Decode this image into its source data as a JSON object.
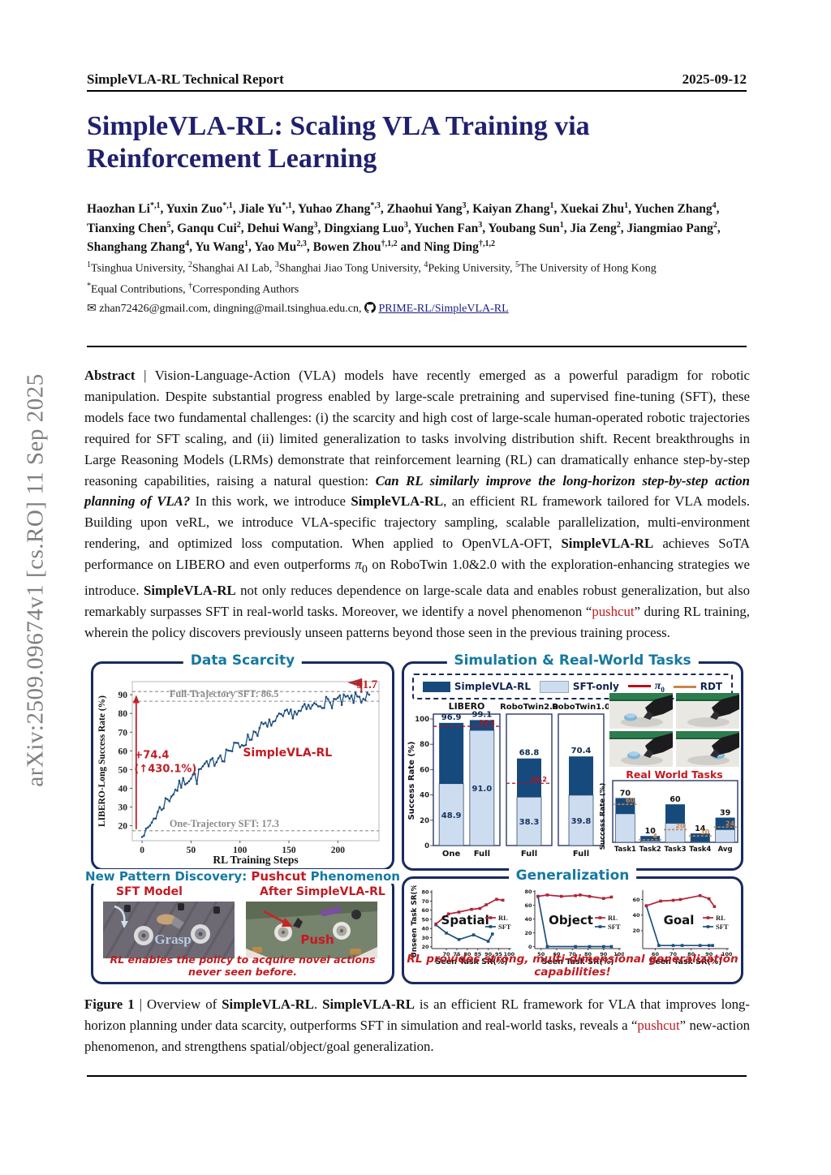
{
  "page": {
    "header_left": "SimpleVLA-RL Technical Report",
    "header_right": "2025-09-12",
    "arxiv_sidebar": "arXiv:2509.09674v1  [cs.RO]  11 Sep 2025",
    "title": "SimpleVLA-RL: Scaling VLA Training via Reinforcement Learning"
  },
  "icons": {
    "envelope": "✉",
    "github": "github-logo"
  },
  "authors": {
    "list": [
      {
        "name": "Haozhan Li",
        "sup": "*,1"
      },
      {
        "name": "Yuxin Zuo",
        "sup": "*,1"
      },
      {
        "name": "Jiale Yu",
        "sup": "*,1"
      },
      {
        "name": "Yuhao Zhang",
        "sup": "*,3"
      },
      {
        "name": "Zhaohui Yang",
        "sup": "3"
      },
      {
        "name": "Kaiyan Zhang",
        "sup": "1"
      },
      {
        "name": "Xuekai Zhu",
        "sup": "1"
      },
      {
        "name": "Yuchen Zhang",
        "sup": "4"
      },
      {
        "name": "Tianxing Chen",
        "sup": "5"
      },
      {
        "name": "Ganqu Cui",
        "sup": "2"
      },
      {
        "name": "Dehui Wang",
        "sup": "3"
      },
      {
        "name": "Dingxiang Luo",
        "sup": "3"
      },
      {
        "name": "Yuchen Fan",
        "sup": "3"
      },
      {
        "name": "Youbang Sun",
        "sup": "1"
      },
      {
        "name": "Jia Zeng",
        "sup": "2"
      },
      {
        "name": "Jiangmiao Pang",
        "sup": "2"
      },
      {
        "name": "Shanghang Zhang",
        "sup": "4"
      },
      {
        "name": "Yu Wang",
        "sup": "1"
      },
      {
        "name": "Yao Mu",
        "sup": "2,3"
      },
      {
        "name": "Bowen Zhou",
        "sup": "†,1,2"
      },
      {
        "name": "Ning Ding",
        "sup": "†,1,2"
      }
    ],
    "conjunction": "and",
    "affiliations": [
      {
        "sup": "1",
        "name": "Tsinghua University"
      },
      {
        "sup": "2",
        "name": "Shanghai AI Lab"
      },
      {
        "sup": "3",
        "name": "Shanghai Jiao Tong University"
      },
      {
        "sup": "4",
        "name": "Peking University"
      },
      {
        "sup": "5",
        "name": "The University of Hong Kong"
      }
    ],
    "contrib": [
      {
        "sup": "*",
        "name": "Equal Contributions"
      },
      {
        "sup": "†",
        "name": "Corresponding Authors"
      }
    ],
    "emails": "zhan72426@gmail.com, dingning@mail.tsinghua.edu.cn,",
    "repo_link": "PRIME-RL/SimpleVLA-RL"
  },
  "abstract": {
    "segments": [
      {
        "t": "Abstract",
        "b": true
      },
      {
        "t": " | Vision-Language-Action (VLA) models have recently emerged as a powerful paradigm for robotic manipulation. Despite substantial progress enabled by large-scale pretraining and supervised fine-tuning (SFT), these models face two fundamental challenges: (i) the scarcity and high cost of large-scale human-operated robotic trajectories required for SFT scaling, and (ii) limited generalization to tasks involving distribution shift. Recent breakthroughs in Large Reasoning Models (LRMs) demonstrate that reinforcement learning (RL) can dramatically enhance step-by-step reasoning capabilities, raising a natural question: "
      },
      {
        "t": "Can RL similarly improve the long-horizon step-by-step action planning of VLA?",
        "b": true,
        "i": true
      },
      {
        "t": " In this work, we introduce "
      },
      {
        "t": "SimpleVLA-RL",
        "b": true
      },
      {
        "t": ", an efficient RL framework tailored for VLA models. Building upon veRL, we introduce VLA-specific trajectory sampling, scalable parallelization, multi-environment rendering, and optimized loss computation.  When applied to OpenVLA-OFT, "
      },
      {
        "t": "SimpleVLA-RL",
        "b": true
      },
      {
        "t": " achieves SoTA performance on LIBERO and even outperforms "
      },
      {
        "t": "π",
        "i": true
      },
      {
        "t": "0",
        "sub": true
      },
      {
        "t": " on RoboTwin 1.0&2.0 with the exploration-enhancing strategies we introduce. "
      },
      {
        "t": "SimpleVLA-RL",
        "b": true
      },
      {
        "t": " not only reduces dependence on large-scale data and enables robust generalization, but also remarkably surpasses SFT in real-world tasks. Moreover, we identify a novel phenomenon “"
      },
      {
        "t": "pushcut",
        "red": true
      },
      {
        "t": "” during RL training, wherein the policy discovers previously unseen patterns beyond those seen in the previous training process."
      }
    ]
  },
  "caption": {
    "segments": [
      {
        "t": "Figure 1",
        "b": true
      },
      {
        "t": " | Overview of "
      },
      {
        "t": "SimpleVLA-RL",
        "b": true
      },
      {
        "t": ". "
      },
      {
        "t": "SimpleVLA-RL",
        "b": true
      },
      {
        "t": " is an efficient RL framework for VLA that improves long-horizon planning under data scarcity, outperforms SFT in simulation and real-world tasks, reveals a “"
      },
      {
        "t": "pushcut",
        "red": true
      },
      {
        "t": "” new-action phenomenon, and strengthens spatial/object/goal generalization."
      }
    ]
  },
  "figure": {
    "pushcut": {
      "title_prefix": "New Pattern Discovery: ",
      "title_red": "Pushcut",
      "title_suffix": " Phenomenon",
      "left_label": "SFT Model",
      "right_label": "After SimpleVLA-RL",
      "left_action": "Grasp",
      "right_action": "Push",
      "caption": "RL enables the policy to acquire novel actions never seen before."
    },
    "real_world_frames": [
      "robot-frame-1",
      "robot-frame-2",
      "robot-frame-3",
      "robot-frame-4"
    ]
  },
  "chart_data": [
    {
      "id": "data_scarcity",
      "type": "line",
      "title": "Data Scarcity",
      "xlabel": "RL Training Steps",
      "ylabel": "LIBERO-Long Success Rate (%)",
      "xlim": [
        -10,
        242
      ],
      "ylim": [
        12,
        97
      ],
      "xticks": [
        0,
        50,
        100,
        150,
        200
      ],
      "yticks": [
        20,
        30,
        40,
        50,
        60,
        70,
        80,
        90
      ],
      "grid": false,
      "line_color": "#1d4e7e",
      "hlines": [
        {
          "y": 91.7,
          "label": ""
        },
        {
          "y": 86.5,
          "label": "Full-Trajectory SFT: 86.5"
        },
        {
          "y": 17.3,
          "label": "One-Trajectory SFT: 17.3"
        }
      ],
      "annotations": {
        "gain": "+74.4",
        "gain_pct": "(↑430.1%)",
        "series_label": "SimpleVLA-RL",
        "final_value": "91.7",
        "accent_color": "#c02028"
      },
      "trend_points": [
        [
          0,
          15
        ],
        [
          4,
          17
        ],
        [
          8,
          20
        ],
        [
          12,
          24
        ],
        [
          16,
          27
        ],
        [
          20,
          30
        ],
        [
          24,
          33
        ],
        [
          28,
          35
        ],
        [
          32,
          38
        ],
        [
          36,
          40
        ],
        [
          40,
          42
        ],
        [
          44,
          44
        ],
        [
          48,
          46
        ],
        [
          52,
          47
        ],
        [
          56,
          45
        ],
        [
          60,
          50
        ],
        [
          64,
          52
        ],
        [
          68,
          51
        ],
        [
          72,
          54
        ],
        [
          76,
          56
        ],
        [
          80,
          58
        ],
        [
          84,
          57
        ],
        [
          88,
          61
        ],
        [
          92,
          60
        ],
        [
          96,
          63
        ],
        [
          100,
          63
        ],
        [
          104,
          65
        ],
        [
          108,
          66
        ],
        [
          112,
          68
        ],
        [
          116,
          71
        ],
        [
          120,
          71
        ],
        [
          124,
          74
        ],
        [
          128,
          72
        ],
        [
          132,
          76
        ],
        [
          136,
          75
        ],
        [
          140,
          77
        ],
        [
          144,
          78
        ],
        [
          148,
          79
        ],
        [
          152,
          80
        ],
        [
          156,
          81
        ],
        [
          160,
          80
        ],
        [
          164,
          82
        ],
        [
          168,
          82
        ],
        [
          172,
          83
        ],
        [
          176,
          84
        ],
        [
          180,
          85
        ],
        [
          184,
          86
        ],
        [
          188,
          86
        ],
        [
          192,
          85
        ],
        [
          196,
          87
        ],
        [
          200,
          87
        ],
        [
          204,
          86
        ],
        [
          208,
          88
        ],
        [
          212,
          87
        ],
        [
          216,
          88
        ],
        [
          220,
          89
        ],
        [
          224,
          88
        ],
        [
          228,
          89
        ],
        [
          232,
          90
        ]
      ]
    },
    {
      "id": "sim_tasks",
      "type": "stacked-bar-groups",
      "title": "Simulation & Real-World Tasks",
      "legend": [
        {
          "label": "SimpleVLA-RL",
          "color": "#164a7d",
          "style": "swatch"
        },
        {
          "label": "SFT-only",
          "color": "#cddcef",
          "style": "swatch"
        },
        {
          "label": "π",
          "sub": "0",
          "color": "#b5121b",
          "style": "line"
        },
        {
          "label": "RDT",
          "color": "#c9854b",
          "style": "line"
        }
      ],
      "ylabel": "Success Rate (%)",
      "yticks": [
        0,
        20,
        40,
        60,
        80,
        100
      ],
      "groups": [
        {
          "name": "LIBERO",
          "bars": [
            {
              "x": "One",
              "total": 96.9,
              "sft": 48.9
            },
            {
              "x": "Full",
              "total": 99.1,
              "sft": 91.0
            }
          ],
          "refline": {
            "value": 94.2,
            "label": "94.2"
          }
        },
        {
          "name": "RoboTwin2.0",
          "bars": [
            {
              "x": "Full",
              "total": 68.8,
              "sft": 38.3
            }
          ],
          "refline": {
            "value": 49.2,
            "label": "49.2"
          }
        },
        {
          "name": "RoboTwin1.0",
          "bars": [
            {
              "x": "Full",
              "total": 70.4,
              "sft": 39.8
            }
          ],
          "refline": null
        }
      ],
      "real_world": {
        "label": "Real World Tasks",
        "ylabel": "Success Rate (%)",
        "categories": [
          "Task1",
          "Task2",
          "Task3",
          "Task4",
          "Avg"
        ],
        "rl_totals": [
          70,
          10,
          60,
          14,
          39
        ],
        "sft_values": [
          45,
          2,
          30,
          1,
          20
        ],
        "rdt_values": [
          60,
          4,
          20,
          10,
          24
        ],
        "rdt_color": "#c9854b"
      }
    },
    {
      "id": "generalization",
      "type": "line-multi",
      "title": "Generalization",
      "caption": "RL provides strong, multi-dimensional generalization capabilities!",
      "legend": [
        {
          "label": "RL",
          "color": "#b02438"
        },
        {
          "label": "SFT",
          "color": "#1d4f7f"
        }
      ],
      "plots": [
        {
          "name": "Spatial",
          "ylabel": "Unseen Task SR(%)",
          "xlabel": "Seen Task SR(%)",
          "xlim": [
            63,
            101
          ],
          "ylim": [
            18,
            82
          ],
          "xticks": [
            70,
            75,
            80,
            85,
            90,
            95,
            100
          ],
          "yticks": [
            20,
            30,
            40,
            50,
            60,
            70,
            80
          ],
          "rl": [
            [
              65,
              45
            ],
            [
              71,
              56
            ],
            [
              76,
              58
            ],
            [
              82,
              61
            ],
            [
              86,
              62
            ],
            [
              89,
              66
            ],
            [
              94,
              72
            ],
            [
              97,
              71
            ]
          ],
          "sft": [
            [
              65,
              44
            ],
            [
              70,
              35
            ],
            [
              76,
              28
            ],
            [
              83,
              33
            ],
            [
              90,
              26
            ],
            [
              92,
              34
            ]
          ]
        },
        {
          "name": "Object",
          "ylabel": "",
          "xlabel": "Seen Task SR(%)",
          "xlim": [
            46,
            101
          ],
          "ylim": [
            -3,
            82
          ],
          "xticks": [
            50,
            60,
            70,
            80,
            90,
            100
          ],
          "yticks": [
            0,
            20,
            40,
            60,
            80
          ],
          "rl": [
            [
              48,
              73
            ],
            [
              54,
              75
            ],
            [
              63,
              73
            ],
            [
              72,
              74
            ],
            [
              75,
              75
            ],
            [
              81,
              73
            ],
            [
              90,
              70
            ],
            [
              95,
              72
            ]
          ],
          "sft": [
            [
              48,
              73
            ],
            [
              54,
              0
            ],
            [
              72,
              0
            ],
            [
              81,
              0
            ],
            [
              90,
              0
            ],
            [
              95,
              0
            ]
          ]
        },
        {
          "name": "Goal",
          "ylabel": "",
          "xlabel": "Seen Task SR(%)",
          "xlim": [
            53,
            101
          ],
          "ylim": [
            -3,
            72
          ],
          "xticks": [
            60,
            70,
            80,
            90,
            100
          ],
          "yticks": [
            20,
            40,
            60
          ],
          "rl": [
            [
              55,
              52
            ],
            [
              63,
              58
            ],
            [
              70,
              59
            ],
            [
              74,
              60
            ],
            [
              85,
              65
            ],
            [
              90,
              61
            ],
            [
              93,
              51
            ]
          ],
          "sft": [
            [
              55,
              52
            ],
            [
              62,
              1
            ],
            [
              70,
              1
            ],
            [
              75,
              1
            ],
            [
              85,
              1
            ],
            [
              90,
              1
            ],
            [
              92,
              1
            ]
          ]
        }
      ]
    }
  ]
}
